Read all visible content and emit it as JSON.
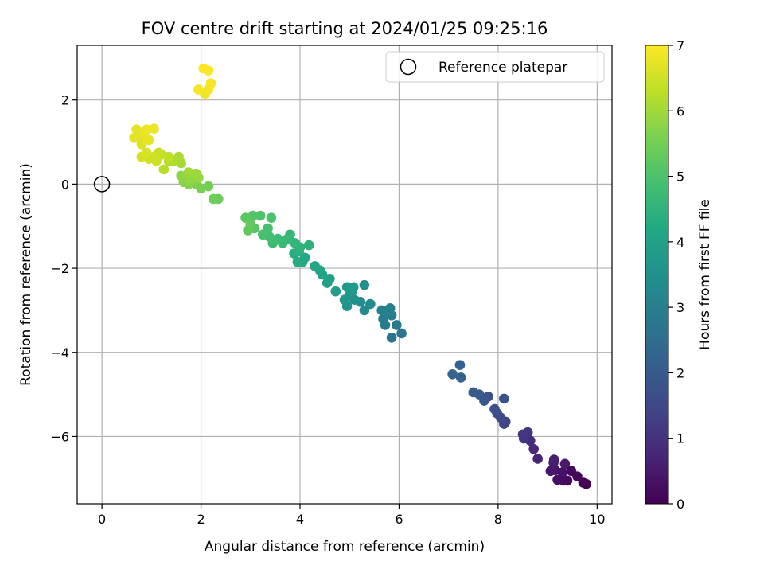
{
  "chart_data": {
    "type": "scatter",
    "title": "FOV centre drift starting at 2024/01/25 09:25:16",
    "xlabel": "Angular distance from reference (arcmin)",
    "ylabel": "Rotation from reference (arcmin)",
    "xlim": [
      -0.5,
      10.3
    ],
    "ylim": [
      -7.6,
      3.3
    ],
    "xticks": [
      0,
      2,
      4,
      6,
      8,
      10
    ],
    "xtick_labels": [
      "0",
      "2",
      "4",
      "6",
      "8",
      "10"
    ],
    "yticks": [
      -6,
      -4,
      -2,
      0,
      2
    ],
    "ytick_labels": [
      "−6",
      "−4",
      "−2",
      "0",
      "2"
    ],
    "grid": true,
    "legend": {
      "placement": "top-right",
      "entries": [
        {
          "label": "Reference platepar",
          "marker": "open-circle"
        }
      ]
    },
    "colormap": "viridis",
    "colorbar": {
      "label": "Hours from first FF file",
      "range": [
        0,
        7
      ],
      "ticks": [
        0,
        1,
        2,
        3,
        4,
        5,
        6,
        7
      ],
      "tick_labels": [
        "0",
        "1",
        "2",
        "3",
        "4",
        "5",
        "6",
        "7"
      ]
    },
    "reference_point": {
      "x": 0,
      "y": 0
    },
    "series": [
      {
        "points": [
          [
            9.78,
            -7.13,
            0.0
          ],
          [
            9.72,
            -7.1,
            0.05
          ],
          [
            9.6,
            -6.95,
            0.1
          ],
          [
            9.48,
            -6.82,
            0.15
          ],
          [
            9.4,
            -7.05,
            0.2
          ],
          [
            9.32,
            -7.05,
            0.25
          ],
          [
            9.2,
            -7.03,
            0.3
          ],
          [
            9.3,
            -6.85,
            0.35
          ],
          [
            9.15,
            -6.8,
            0.4
          ],
          [
            9.06,
            -6.82,
            0.45
          ],
          [
            9.35,
            -6.65,
            0.5
          ],
          [
            9.13,
            -6.55,
            0.55
          ],
          [
            9.12,
            -6.62,
            0.6
          ],
          [
            8.8,
            -6.53,
            0.7
          ],
          [
            8.72,
            -6.3,
            0.8
          ],
          [
            8.65,
            -6.1,
            0.9
          ],
          [
            8.52,
            -6.05,
            1.0
          ],
          [
            8.6,
            -5.9,
            1.05
          ],
          [
            8.5,
            -5.95,
            1.1
          ],
          [
            8.15,
            -5.65,
            1.3
          ],
          [
            8.12,
            -5.7,
            1.4
          ],
          [
            8.05,
            -5.55,
            1.5
          ],
          [
            7.98,
            -5.45,
            1.6
          ],
          [
            7.93,
            -5.35,
            1.7
          ],
          [
            8.12,
            -5.1,
            1.75
          ],
          [
            7.8,
            -5.05,
            1.8
          ],
          [
            7.72,
            -5.15,
            1.9
          ],
          [
            7.62,
            -5.0,
            1.95
          ],
          [
            7.5,
            -4.95,
            2.0
          ],
          [
            7.25,
            -4.6,
            2.2
          ],
          [
            7.23,
            -4.3,
            2.25
          ],
          [
            7.08,
            -4.52,
            2.3
          ],
          [
            5.85,
            -3.65,
            2.7
          ],
          [
            6.05,
            -3.55,
            2.75
          ],
          [
            5.95,
            -3.35,
            2.8
          ],
          [
            5.72,
            -3.35,
            2.85
          ],
          [
            5.68,
            -3.2,
            2.9
          ],
          [
            5.85,
            -3.12,
            2.95
          ],
          [
            5.65,
            -3.0,
            3.0
          ],
          [
            5.82,
            -2.95,
            3.05
          ],
          [
            5.75,
            -3.05,
            3.1
          ],
          [
            5.3,
            -3.0,
            3.3
          ],
          [
            5.42,
            -2.85,
            3.35
          ],
          [
            5.22,
            -2.8,
            3.4
          ],
          [
            5.3,
            -2.4,
            3.45
          ],
          [
            5.1,
            -2.75,
            3.5
          ],
          [
            5.0,
            -2.65,
            3.55
          ],
          [
            4.95,
            -2.9,
            3.6
          ],
          [
            4.9,
            -2.75,
            3.65
          ],
          [
            5.05,
            -2.55,
            3.7
          ],
          [
            4.95,
            -2.45,
            3.75
          ],
          [
            5.08,
            -2.45,
            3.8
          ],
          [
            4.72,
            -2.55,
            3.85
          ],
          [
            4.55,
            -2.35,
            3.95
          ],
          [
            4.6,
            -2.25,
            4.0
          ],
          [
            4.45,
            -2.15,
            4.05
          ],
          [
            4.4,
            -2.05,
            4.1
          ],
          [
            4.3,
            -1.95,
            4.15
          ],
          [
            4.1,
            -1.75,
            4.2
          ],
          [
            4.05,
            -1.85,
            4.25
          ],
          [
            3.95,
            -1.85,
            4.3
          ],
          [
            3.88,
            -1.65,
            4.35
          ],
          [
            3.98,
            -1.6,
            4.4
          ],
          [
            4.18,
            -1.45,
            4.45
          ],
          [
            4.0,
            -1.5,
            4.5
          ],
          [
            3.9,
            -1.4,
            4.55
          ],
          [
            3.8,
            -1.2,
            4.6
          ],
          [
            3.75,
            -1.3,
            4.65
          ],
          [
            3.65,
            -1.4,
            4.7
          ],
          [
            3.55,
            -1.3,
            4.75
          ],
          [
            3.45,
            -1.4,
            4.8
          ],
          [
            3.38,
            -1.25,
            4.85
          ],
          [
            3.35,
            -1.05,
            4.9
          ],
          [
            3.25,
            -1.2,
            4.95
          ],
          [
            3.42,
            -0.8,
            5.0
          ],
          [
            3.2,
            -0.75,
            5.05
          ],
          [
            3.05,
            -0.75,
            5.1
          ],
          [
            3.08,
            -1.05,
            5.15
          ],
          [
            2.9,
            -0.8,
            5.2
          ],
          [
            2.95,
            -1.1,
            5.25
          ],
          [
            3.0,
            -0.95,
            5.3
          ],
          [
            2.35,
            -0.35,
            5.4
          ],
          [
            2.25,
            -0.35,
            5.45
          ],
          [
            2.15,
            -0.05,
            5.5
          ],
          [
            2.0,
            -0.1,
            5.55
          ],
          [
            1.9,
            0.0,
            5.6
          ],
          [
            1.8,
            0.05,
            5.65
          ],
          [
            1.75,
            0.0,
            5.7
          ],
          [
            1.65,
            0.05,
            5.75
          ],
          [
            1.6,
            0.2,
            5.8
          ],
          [
            1.78,
            0.1,
            5.85
          ],
          [
            1.95,
            0.15,
            5.9
          ],
          [
            1.9,
            0.25,
            5.95
          ],
          [
            1.75,
            0.28,
            6.0
          ],
          [
            1.6,
            0.5,
            6.05
          ],
          [
            1.55,
            0.65,
            6.1
          ],
          [
            1.45,
            0.55,
            6.15
          ],
          [
            1.35,
            0.55,
            6.2
          ],
          [
            1.25,
            0.35,
            6.25
          ],
          [
            1.35,
            0.65,
            6.3
          ],
          [
            1.2,
            0.7,
            6.35
          ],
          [
            1.15,
            0.75,
            6.4
          ],
          [
            1.1,
            0.55,
            6.45
          ],
          [
            1.05,
            0.65,
            6.5
          ],
          [
            0.95,
            0.6,
            6.5
          ],
          [
            0.8,
            0.65,
            6.55
          ],
          [
            0.9,
            0.75,
            6.6
          ],
          [
            0.8,
            0.95,
            6.6
          ],
          [
            0.85,
            1.05,
            6.65
          ],
          [
            0.75,
            1.15,
            6.65
          ],
          [
            0.65,
            1.1,
            6.7
          ],
          [
            0.7,
            1.3,
            6.7
          ],
          [
            0.85,
            1.2,
            6.75
          ],
          [
            0.95,
            1.05,
            6.75
          ],
          [
            0.9,
            1.3,
            6.8
          ],
          [
            1.05,
            1.32,
            6.8
          ],
          [
            2.08,
            2.15,
            6.85
          ],
          [
            1.95,
            2.25,
            6.9
          ],
          [
            2.15,
            2.25,
            6.9
          ],
          [
            2.2,
            2.4,
            6.95
          ],
          [
            2.15,
            2.7,
            7.0
          ],
          [
            2.05,
            2.75,
            7.0
          ]
        ]
      }
    ]
  }
}
